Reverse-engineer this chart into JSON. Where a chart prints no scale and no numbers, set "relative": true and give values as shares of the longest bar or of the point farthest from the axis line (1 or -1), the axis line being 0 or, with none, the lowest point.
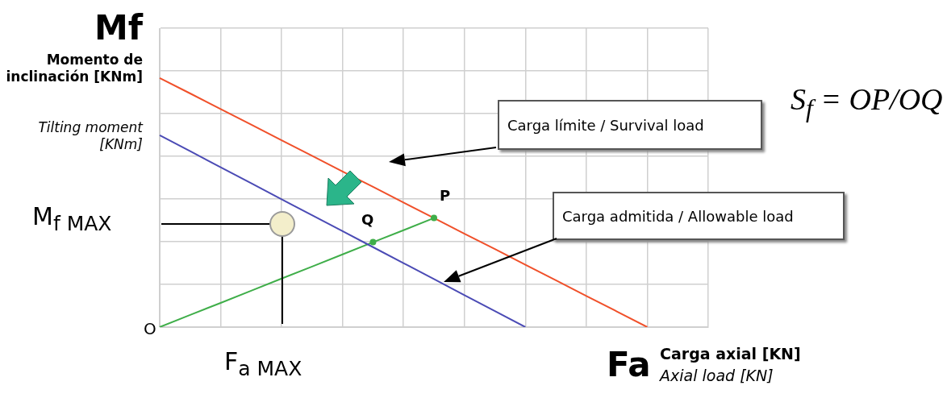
{
  "chart_data": {
    "type": "line",
    "relative": true,
    "ylabel": "Mf",
    "xlabel": "Fa",
    "grid": true,
    "legend": false,
    "marker": "none",
    "line_style": "solid",
    "categories": [
      null,
      null,
      null,
      null,
      null,
      null,
      null,
      null,
      null,
      null,
      null,
      null,
      null,
      null,
      null,
      null,
      null,
      null,
      null
    ],
    "series": [
      {
        "name": "Carga límite / Survival load",
        "color": "#f0502a",
        "values": [
          1,
          0.938,
          0.875,
          0.813,
          0.75,
          0.688,
          0.625,
          0.563,
          0.5,
          0.438,
          0.375,
          0.313,
          0.25,
          0.188,
          0.125,
          0.063,
          0,
          null,
          null
        ]
      },
      {
        "name": "Carga admitida / Allowable load",
        "color": "#4b4bb5",
        "values": [
          0.77,
          0.706,
          0.642,
          0.578,
          0.513,
          0.449,
          0.385,
          0.321,
          0.257,
          0.193,
          0.128,
          0.064,
          0,
          null,
          null,
          null,
          null,
          null,
          null
        ]
      },
      {
        "color": "#3fae49",
        "values": [
          0,
          0.049,
          0.097,
          0.146,
          0.195,
          0.243,
          0.292,
          0.341,
          0.389,
          0.438,
          null,
          null,
          null,
          null,
          null,
          null,
          null,
          null,
          null
        ]
      }
    ],
    "annotations": [
      "Momento de inclinación [KNm]",
      "Tilting moment [KNm]",
      "Carga axial [KN]",
      "Axial load [KN]",
      "O",
      "P",
      "Q",
      "M$_{f MAX}$",
      "F$_{a MAX}$",
      "S$_{f}$ = OP/OQ"
    ]
  }
}
